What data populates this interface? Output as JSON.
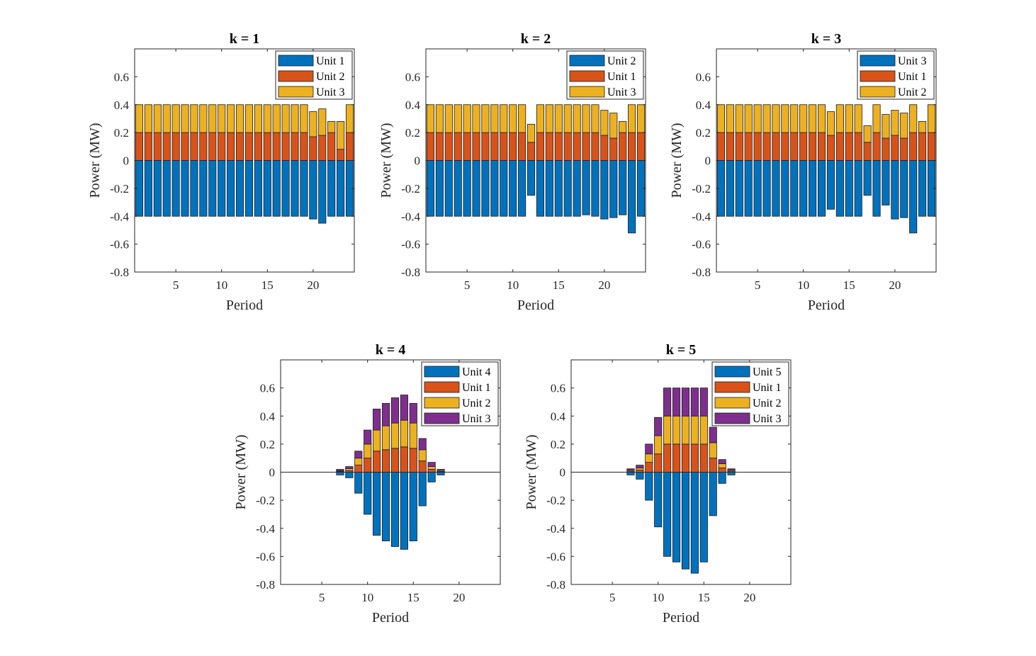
{
  "colors": {
    "c1": "#0072BD",
    "c2": "#D95319",
    "c3": "#EDB120",
    "c4": "#7E2F8E"
  },
  "chart_data": [
    {
      "type": "bar",
      "stacked": true,
      "title": "k = 1",
      "xlabel": "Period",
      "ylabel": "Power (MW)",
      "xlim": [
        0.5,
        24.5
      ],
      "ylim": [
        -0.8,
        0.8
      ],
      "xticks": [
        5,
        10,
        15,
        20
      ],
      "yticks": [
        -0.8,
        -0.6,
        -0.4,
        -0.2,
        0,
        0.2,
        0.4,
        0.6
      ],
      "ytick_labels": [
        "-0.8",
        "-0.6",
        "-0.4",
        "-0.2",
        "0",
        "0.2",
        "0.4",
        "0.6"
      ],
      "show_zero_line": false,
      "legend_position": "top-right",
      "x": [
        1,
        2,
        3,
        4,
        5,
        6,
        7,
        8,
        9,
        10,
        11,
        12,
        13,
        14,
        15,
        16,
        17,
        18,
        19,
        20,
        21,
        22,
        23,
        24
      ],
      "series": [
        {
          "name": "Unit 1",
          "color": "c1",
          "values": [
            -0.4,
            -0.4,
            -0.4,
            -0.4,
            -0.4,
            -0.4,
            -0.4,
            -0.4,
            -0.4,
            -0.4,
            -0.4,
            -0.4,
            -0.4,
            -0.4,
            -0.4,
            -0.4,
            -0.4,
            -0.4,
            -0.4,
            -0.42,
            -0.45,
            -0.4,
            -0.4,
            -0.4
          ]
        },
        {
          "name": "Unit 2",
          "color": "c2",
          "values": [
            0.2,
            0.2,
            0.2,
            0.2,
            0.2,
            0.2,
            0.2,
            0.2,
            0.2,
            0.2,
            0.2,
            0.2,
            0.2,
            0.2,
            0.2,
            0.2,
            0.2,
            0.2,
            0.2,
            0.17,
            0.18,
            0.2,
            0.08,
            0.2
          ]
        },
        {
          "name": "Unit 3",
          "color": "c3",
          "values": [
            0.2,
            0.2,
            0.2,
            0.2,
            0.2,
            0.2,
            0.2,
            0.2,
            0.2,
            0.2,
            0.2,
            0.2,
            0.2,
            0.2,
            0.2,
            0.2,
            0.2,
            0.2,
            0.2,
            0.18,
            0.19,
            0.08,
            0.2,
            0.2
          ]
        }
      ]
    },
    {
      "type": "bar",
      "stacked": true,
      "title": "k = 2",
      "xlabel": "Period",
      "ylabel": "Power (MW)",
      "xlim": [
        0.5,
        24.5
      ],
      "ylim": [
        -0.8,
        0.8
      ],
      "xticks": [
        5,
        10,
        15,
        20
      ],
      "yticks": [
        -0.8,
        -0.6,
        -0.4,
        -0.2,
        0,
        0.2,
        0.4,
        0.6
      ],
      "ytick_labels": [
        "-0.8",
        "-0.6",
        "-0.4",
        "-0.2",
        "0",
        "0.2",
        "0.4",
        "0.6"
      ],
      "show_zero_line": false,
      "legend_position": "top-right",
      "x": [
        1,
        2,
        3,
        4,
        5,
        6,
        7,
        8,
        9,
        10,
        11,
        12,
        13,
        14,
        15,
        16,
        17,
        18,
        19,
        20,
        21,
        22,
        23,
        24
      ],
      "series": [
        {
          "name": "Unit 2",
          "color": "c1",
          "values": [
            -0.4,
            -0.4,
            -0.4,
            -0.4,
            -0.4,
            -0.4,
            -0.4,
            -0.4,
            -0.4,
            -0.4,
            -0.4,
            -0.25,
            -0.4,
            -0.4,
            -0.4,
            -0.4,
            -0.4,
            -0.39,
            -0.4,
            -0.42,
            -0.41,
            -0.39,
            -0.52,
            -0.4
          ]
        },
        {
          "name": "Unit 1",
          "color": "c2",
          "values": [
            0.2,
            0.2,
            0.2,
            0.2,
            0.2,
            0.2,
            0.2,
            0.2,
            0.2,
            0.2,
            0.2,
            0.13,
            0.2,
            0.2,
            0.2,
            0.2,
            0.2,
            0.2,
            0.2,
            0.18,
            0.16,
            0.2,
            0.2,
            0.2
          ]
        },
        {
          "name": "Unit 3",
          "color": "c3",
          "values": [
            0.2,
            0.2,
            0.2,
            0.2,
            0.2,
            0.2,
            0.2,
            0.2,
            0.2,
            0.2,
            0.2,
            0.13,
            0.2,
            0.2,
            0.2,
            0.2,
            0.2,
            0.2,
            0.2,
            0.18,
            0.18,
            0.08,
            0.2,
            0.2
          ]
        }
      ]
    },
    {
      "type": "bar",
      "stacked": true,
      "title": "k = 3",
      "xlabel": "Period",
      "ylabel": "Power (MW)",
      "xlim": [
        0.5,
        24.5
      ],
      "ylim": [
        -0.8,
        0.8
      ],
      "xticks": [
        5,
        10,
        15,
        20
      ],
      "yticks": [
        -0.8,
        -0.6,
        -0.4,
        -0.2,
        0,
        0.2,
        0.4,
        0.6
      ],
      "ytick_labels": [
        "-0.8",
        "-0.6",
        "-0.4",
        "-0.2",
        "0",
        "0.2",
        "0.4",
        "0.6"
      ],
      "show_zero_line": false,
      "legend_position": "top-right",
      "x": [
        1,
        2,
        3,
        4,
        5,
        6,
        7,
        8,
        9,
        10,
        11,
        12,
        13,
        14,
        15,
        16,
        17,
        18,
        19,
        20,
        21,
        22,
        23,
        24
      ],
      "series": [
        {
          "name": "Unit 3",
          "color": "c1",
          "values": [
            -0.4,
            -0.4,
            -0.4,
            -0.4,
            -0.4,
            -0.4,
            -0.4,
            -0.4,
            -0.4,
            -0.4,
            -0.4,
            -0.4,
            -0.35,
            -0.4,
            -0.4,
            -0.4,
            -0.25,
            -0.4,
            -0.32,
            -0.42,
            -0.41,
            -0.52,
            -0.4,
            -0.4
          ]
        },
        {
          "name": "Unit 1",
          "color": "c2",
          "values": [
            0.2,
            0.2,
            0.2,
            0.2,
            0.2,
            0.2,
            0.2,
            0.2,
            0.2,
            0.2,
            0.2,
            0.2,
            0.18,
            0.2,
            0.2,
            0.2,
            0.13,
            0.2,
            0.16,
            0.18,
            0.16,
            0.2,
            0.2,
            0.2
          ]
        },
        {
          "name": "Unit 2",
          "color": "c3",
          "values": [
            0.2,
            0.2,
            0.2,
            0.2,
            0.2,
            0.2,
            0.2,
            0.2,
            0.2,
            0.2,
            0.2,
            0.2,
            0.17,
            0.2,
            0.2,
            0.2,
            0.12,
            0.2,
            0.17,
            0.18,
            0.18,
            0.2,
            0.08,
            0.2
          ]
        }
      ]
    },
    {
      "type": "bar",
      "stacked": true,
      "title": "k = 4",
      "xlabel": "Period",
      "ylabel": "Power (MW)",
      "xlim": [
        0.5,
        24.5
      ],
      "ylim": [
        -0.8,
        0.8
      ],
      "xticks": [
        5,
        10,
        15,
        20
      ],
      "yticks": [
        -0.8,
        -0.6,
        -0.4,
        -0.2,
        0,
        0.2,
        0.4,
        0.6
      ],
      "ytick_labels": [
        "-0.8",
        "-0.6",
        "-0.4",
        "-0.2",
        "0",
        "0.2",
        "0.4",
        "0.6"
      ],
      "show_zero_line": true,
      "legend_position": "top-right",
      "x": [
        1,
        2,
        3,
        4,
        5,
        6,
        7,
        8,
        9,
        10,
        11,
        12,
        13,
        14,
        15,
        16,
        17,
        18,
        19,
        20,
        21,
        22,
        23,
        24
      ],
      "series": [
        {
          "name": "Unit 4",
          "color": "c1",
          "values": [
            0,
            0,
            0,
            0,
            0,
            0,
            -0.02,
            -0.04,
            -0.15,
            -0.3,
            -0.45,
            -0.49,
            -0.53,
            -0.55,
            -0.49,
            -0.24,
            -0.07,
            -0.02,
            0,
            0,
            0,
            0,
            0,
            0
          ]
        },
        {
          "name": "Unit 1",
          "color": "c2",
          "values": [
            0,
            0,
            0,
            0,
            0,
            0,
            0.005,
            0.01,
            0.05,
            0.1,
            0.15,
            0.16,
            0.17,
            0.18,
            0.17,
            0.08,
            0.02,
            0.005,
            0,
            0,
            0,
            0,
            0,
            0
          ]
        },
        {
          "name": "Unit 2",
          "color": "c3",
          "values": [
            0,
            0,
            0,
            0,
            0,
            0,
            0.005,
            0.015,
            0.05,
            0.1,
            0.15,
            0.17,
            0.18,
            0.19,
            0.18,
            0.08,
            0.02,
            0.008,
            0,
            0,
            0,
            0,
            0,
            0
          ]
        },
        {
          "name": "Unit 3",
          "color": "c4",
          "values": [
            0,
            0,
            0,
            0,
            0,
            0,
            0.01,
            0.015,
            0.05,
            0.1,
            0.15,
            0.16,
            0.18,
            0.18,
            0.14,
            0.08,
            0.03,
            0.007,
            0,
            0,
            0,
            0,
            0,
            0
          ]
        }
      ]
    },
    {
      "type": "bar",
      "stacked": true,
      "title": "k = 5",
      "xlabel": "Period",
      "ylabel": "Power (MW)",
      "xlim": [
        0.5,
        24.5
      ],
      "ylim": [
        -0.8,
        0.8
      ],
      "xticks": [
        5,
        10,
        15,
        20
      ],
      "yticks": [
        -0.8,
        -0.6,
        -0.4,
        -0.2,
        0,
        0.2,
        0.4,
        0.6
      ],
      "ytick_labels": [
        "-0.8",
        "-0.6",
        "-0.4",
        "-0.2",
        "0",
        "0.2",
        "0.4",
        "0.6"
      ],
      "show_zero_line": true,
      "legend_position": "top-right",
      "x": [
        1,
        2,
        3,
        4,
        5,
        6,
        7,
        8,
        9,
        10,
        11,
        12,
        13,
        14,
        15,
        16,
        17,
        18,
        19,
        20,
        21,
        22,
        23,
        24
      ],
      "series": [
        {
          "name": "Unit 5",
          "color": "c1",
          "values": [
            0,
            0,
            0,
            0,
            0,
            0,
            -0.02,
            -0.05,
            -0.2,
            -0.39,
            -0.6,
            -0.64,
            -0.69,
            -0.72,
            -0.64,
            -0.31,
            -0.08,
            -0.02,
            0,
            0,
            0,
            0,
            0,
            0
          ]
        },
        {
          "name": "Unit 1",
          "color": "c2",
          "values": [
            0,
            0,
            0,
            0,
            0,
            0,
            0.007,
            0.015,
            0.07,
            0.13,
            0.2,
            0.2,
            0.2,
            0.2,
            0.2,
            0.1,
            0.03,
            0.007,
            0,
            0,
            0,
            0,
            0,
            0
          ]
        },
        {
          "name": "Unit 2",
          "color": "c3",
          "values": [
            0,
            0,
            0,
            0,
            0,
            0,
            0.007,
            0.015,
            0.06,
            0.13,
            0.2,
            0.2,
            0.2,
            0.2,
            0.2,
            0.11,
            0.03,
            0.007,
            0,
            0,
            0,
            0,
            0,
            0
          ]
        },
        {
          "name": "Unit 3",
          "color": "c4",
          "values": [
            0,
            0,
            0,
            0,
            0,
            0,
            0.01,
            0.02,
            0.07,
            0.13,
            0.2,
            0.2,
            0.2,
            0.2,
            0.2,
            0.11,
            0.03,
            0.01,
            0,
            0,
            0,
            0,
            0,
            0
          ]
        }
      ]
    }
  ]
}
